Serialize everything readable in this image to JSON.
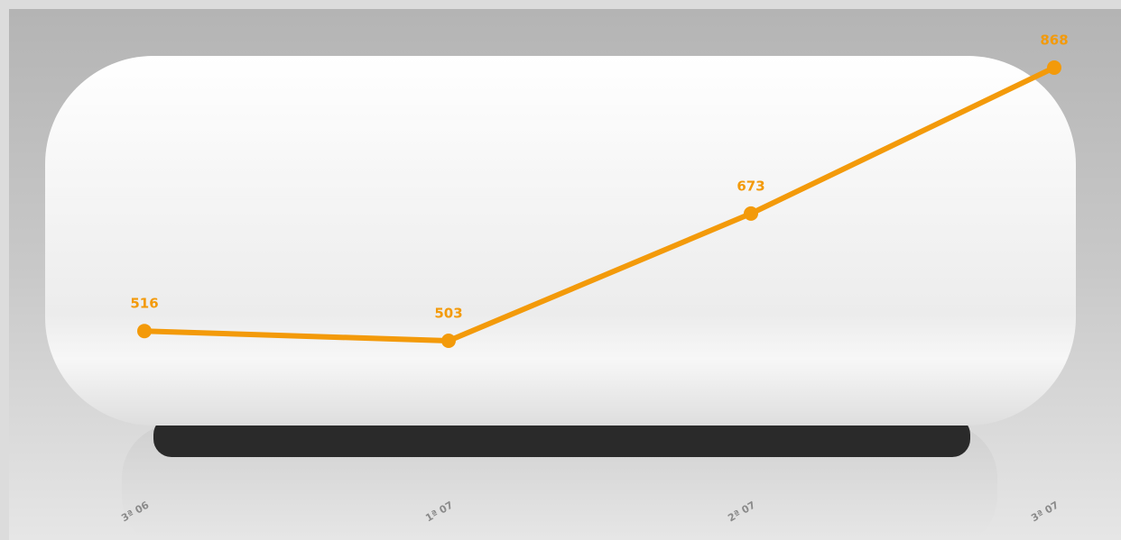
{
  "chart_data": {
    "type": "line",
    "categories": [
      "3ª 06",
      "1ª 07",
      "2ª 07",
      "3ª 07"
    ],
    "series": [
      {
        "color": "#f39a0a",
        "values": [
          516,
          503,
          673,
          868
        ]
      }
    ]
  }
}
